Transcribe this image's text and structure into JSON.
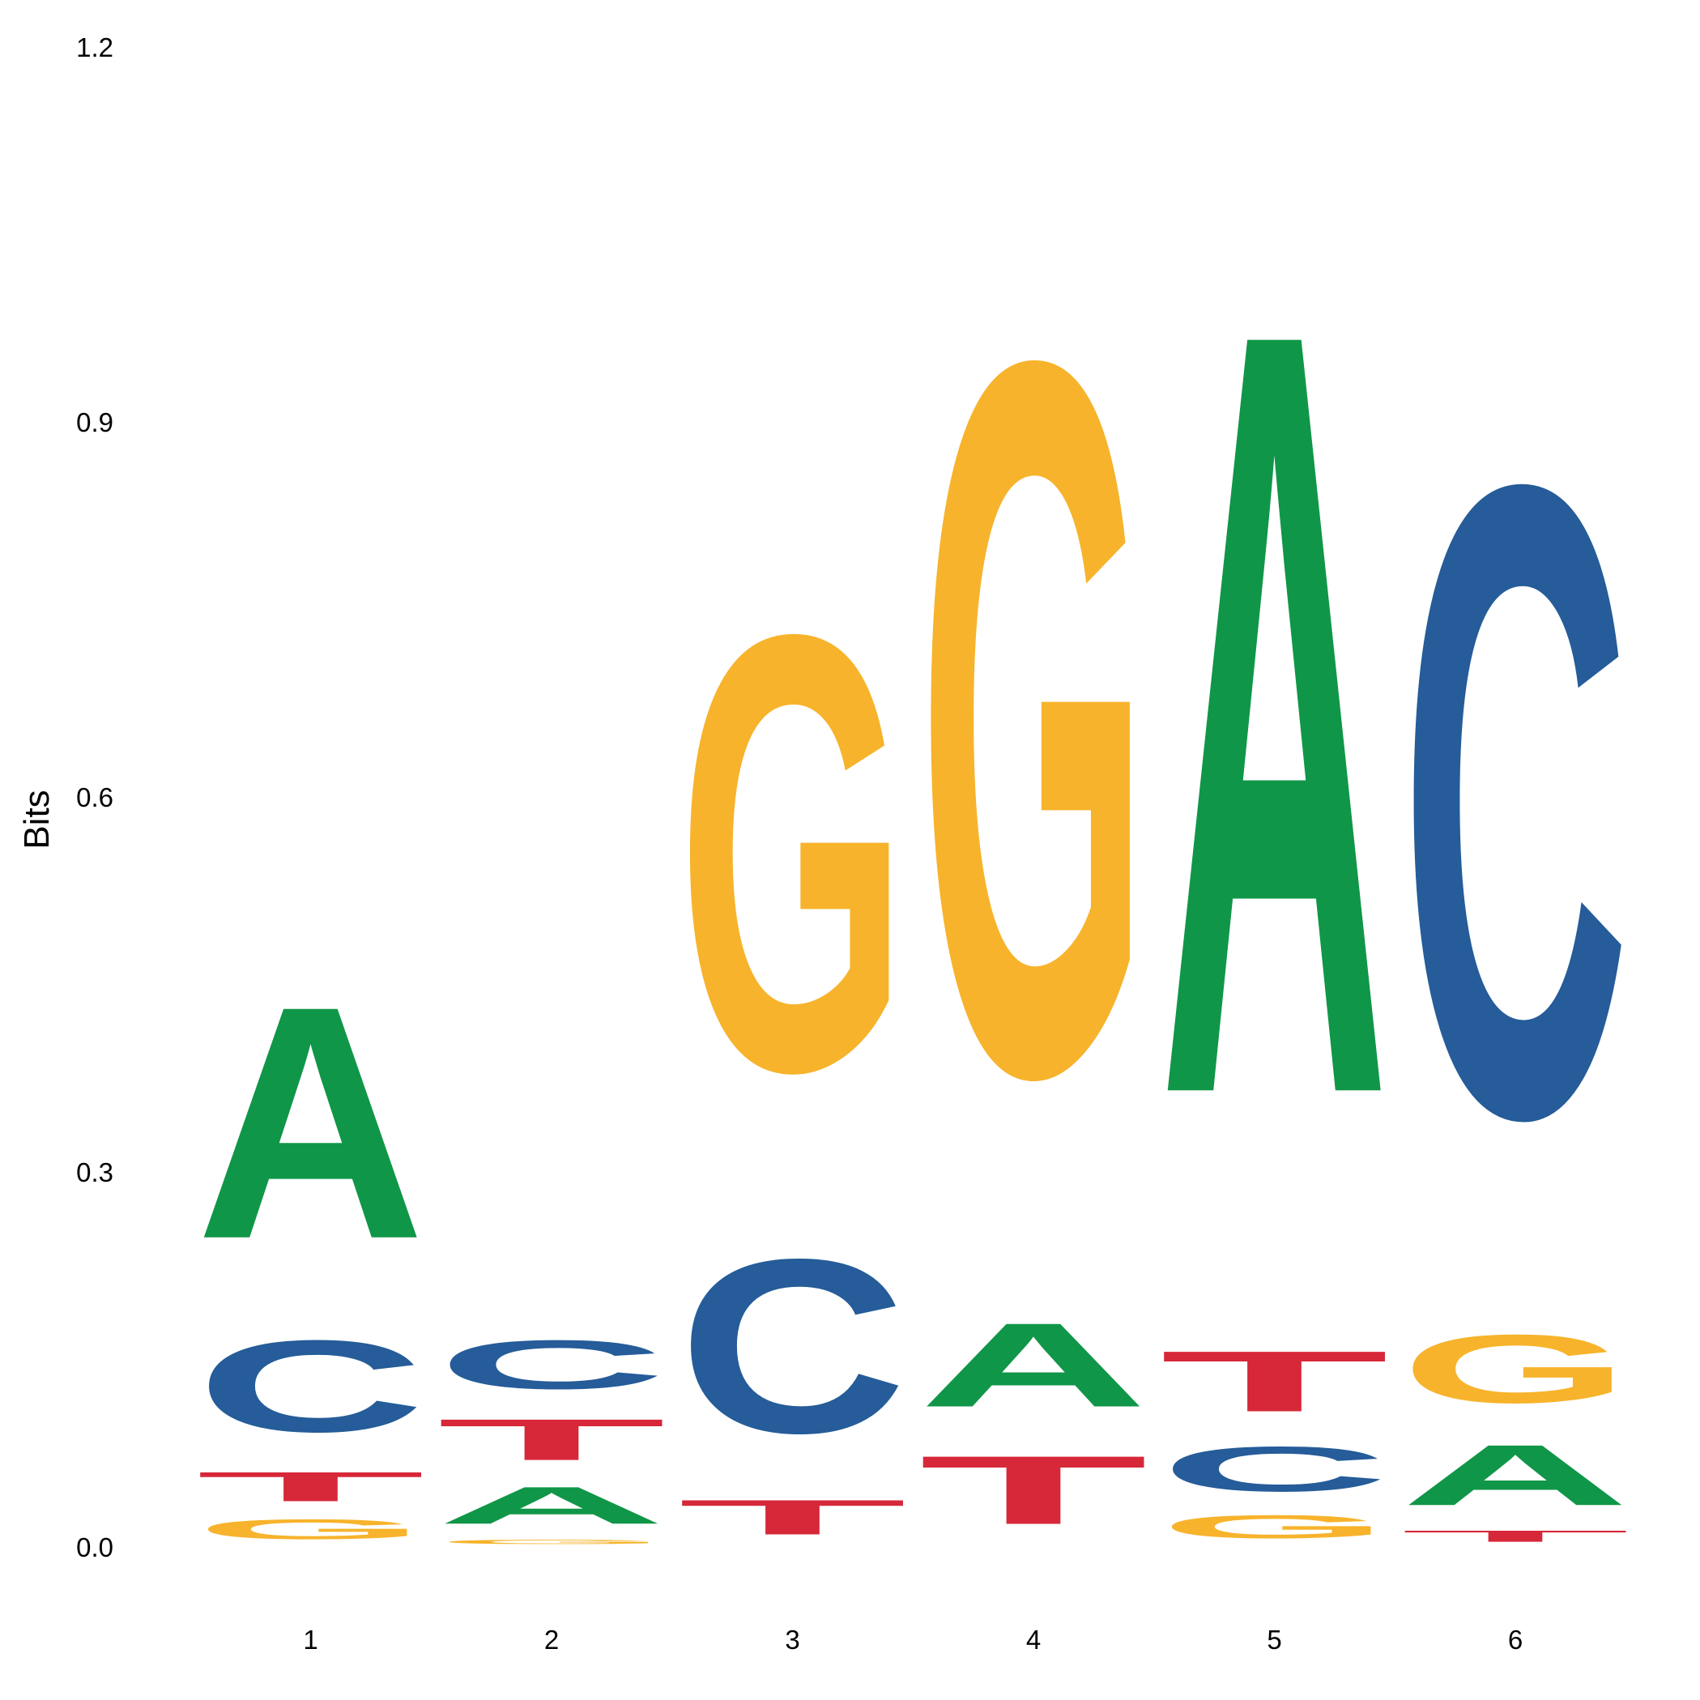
{
  "chart_data": {
    "type": "sequence-logo",
    "ylabel": "Bits",
    "ylim": [
      0,
      1.2
    ],
    "yticks": [
      "0.0",
      "0.3",
      "0.6",
      "0.9",
      "1.2"
    ],
    "categories": [
      "1",
      "2",
      "3",
      "4",
      "5",
      "6"
    ],
    "colors": {
      "A": "#109648",
      "C": "#255c99",
      "G": "#f7b32b",
      "T": "#d62839"
    },
    "positions": [
      {
        "position": "1",
        "letters": [
          {
            "letter": "G",
            "bits": 0.028
          },
          {
            "letter": "T",
            "bits": 0.04
          },
          {
            "letter": "C",
            "bits": 0.12
          },
          {
            "letter": "A",
            "bits": 0.3
          }
        ]
      },
      {
        "position": "2",
        "letters": [
          {
            "letter": "G",
            "bits": 0.008
          },
          {
            "letter": "A",
            "bits": 0.05
          },
          {
            "letter": "T",
            "bits": 0.055
          },
          {
            "letter": "C",
            "bits": 0.065
          }
        ]
      },
      {
        "position": "3",
        "letters": [
          {
            "letter": "T",
            "bits": 0.047
          },
          {
            "letter": "C",
            "bits": 0.225
          },
          {
            "letter": "G",
            "bits": 0.56
          }
        ]
      },
      {
        "position": "4",
        "letters": [
          {
            "letter": "T",
            "bits": 0.09
          },
          {
            "letter": "A",
            "bits": 0.11
          },
          {
            "letter": "G",
            "bits": 0.915
          }
        ]
      },
      {
        "position": "5",
        "letters": [
          {
            "letter": "G",
            "bits": 0.032
          },
          {
            "letter": "C",
            "bits": 0.06
          },
          {
            "letter": "T",
            "bits": 0.08
          },
          {
            "letter": "A",
            "bits": 0.98
          }
        ]
      },
      {
        "position": "6",
        "letters": [
          {
            "letter": "T",
            "bits": 0.017
          },
          {
            "letter": "A",
            "bits": 0.08
          },
          {
            "letter": "G",
            "bits": 0.09
          },
          {
            "letter": "C",
            "bits": 0.81
          }
        ]
      }
    ]
  }
}
